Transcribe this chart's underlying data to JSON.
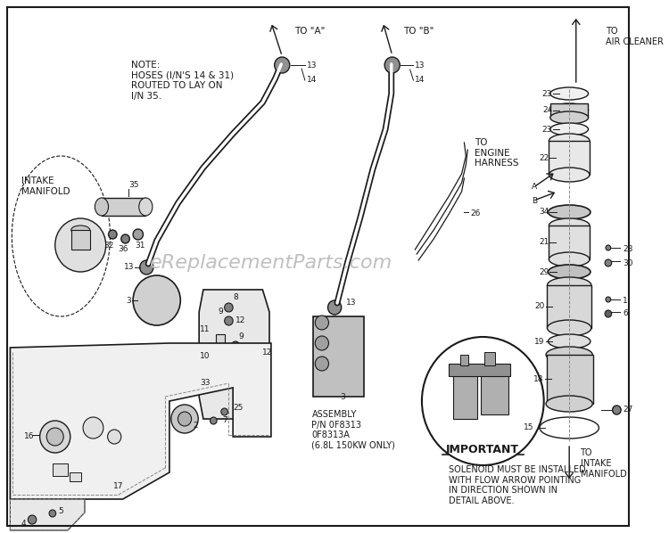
{
  "bg_color": "#ffffff",
  "line_color": "#1a1a1a",
  "watermark_text": "eReplacementParts.com",
  "watermark_color": "#c0c0c0",
  "watermark_alpha": 0.45,
  "title_note": "NOTE:\nHOSES (I/N'S 14 & 31)\nROUTED TO LAY ON\nI/N 35.",
  "intake_manifold_label": "INTAKE\nMANIFOLD",
  "to_air_cleaner": "TO\nAIR CLEANER",
  "to_engine_harness": "TO\nENGINE\nHARNESS",
  "to_intake_manifold": "TO\nINTAKE\nMANIFOLD",
  "to_a": "TO \"A\"",
  "to_b": "TO \"B\"",
  "important_label": "IMPORTANT",
  "important_text": "SOLENOID MUST BE INSTALLED\nWITH FLOW ARROW POINTING\nIN DIRECTION SHOWN IN\nDETAIL ABOVE.",
  "assembly_label": "ASSEMBLY\nP/N 0F8313\n0F8313A\n(6.8L 150KW ONLY)",
  "figsize": [
    7.5,
    5.98
  ],
  "dpi": 100
}
